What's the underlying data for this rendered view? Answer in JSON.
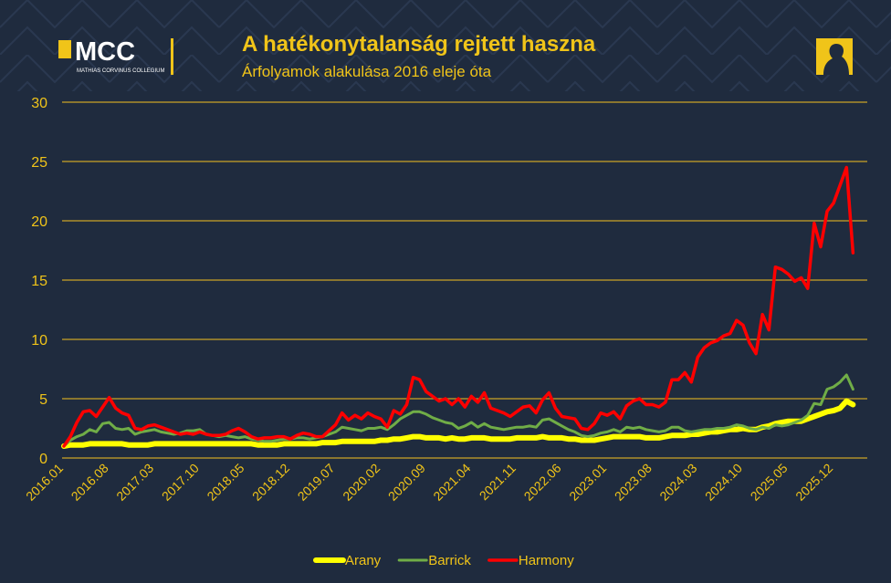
{
  "logo": {
    "text": "MCC",
    "subtitle": "MATHIAS CORVINUS COLLEGIUM"
  },
  "chart_data": {
    "type": "line",
    "title": "A hatékonytalanság rejtett haszna",
    "subtitle": "Árfolyamok alakulása 2016 eleje óta",
    "categories": [
      "2016.01",
      null,
      null,
      null,
      null,
      null,
      null,
      "2016.08",
      null,
      null,
      null,
      null,
      null,
      null,
      "2017.03",
      null,
      null,
      null,
      null,
      null,
      null,
      "2017.10",
      null,
      null,
      null,
      null,
      null,
      null,
      "2018.05",
      null,
      null,
      null,
      null,
      null,
      null,
      "2018.12",
      null,
      null,
      null,
      null,
      null,
      null,
      "2019.07",
      null,
      null,
      null,
      null,
      null,
      null,
      "2020.02",
      null,
      null,
      null,
      null,
      null,
      null,
      "2020.09",
      null,
      null,
      null,
      null,
      null,
      null,
      "2021.04",
      null,
      null,
      null,
      null,
      null,
      null,
      "2021.11",
      null,
      null,
      null,
      null,
      null,
      null,
      "2022.06",
      null,
      null,
      null,
      null,
      null,
      null,
      "2023.01",
      null,
      null,
      null,
      null,
      null,
      null,
      "2023.08",
      null,
      null,
      null,
      null,
      null,
      null,
      "2024.03",
      null,
      null,
      null,
      null,
      null,
      null,
      "2024.10",
      null,
      null,
      null,
      null,
      null,
      null,
      "2025.05",
      null,
      null,
      null,
      null,
      null,
      null,
      "2025.12",
      null,
      null,
      null
    ],
    "series": [
      {
        "name": "Arany",
        "color": "#ffff00",
        "line_width": 6,
        "values": [
          1.0,
          1.1,
          1.1,
          1.1,
          1.2,
          1.2,
          1.2,
          1.2,
          1.2,
          1.2,
          1.1,
          1.1,
          1.1,
          1.1,
          1.2,
          1.2,
          1.2,
          1.2,
          1.2,
          1.2,
          1.2,
          1.2,
          1.2,
          1.2,
          1.2,
          1.2,
          1.2,
          1.2,
          1.2,
          1.2,
          1.1,
          1.1,
          1.1,
          1.1,
          1.2,
          1.2,
          1.2,
          1.2,
          1.2,
          1.2,
          1.3,
          1.3,
          1.3,
          1.4,
          1.4,
          1.4,
          1.4,
          1.4,
          1.4,
          1.5,
          1.5,
          1.6,
          1.6,
          1.7,
          1.8,
          1.8,
          1.7,
          1.7,
          1.7,
          1.6,
          1.7,
          1.6,
          1.6,
          1.7,
          1.7,
          1.7,
          1.6,
          1.6,
          1.6,
          1.6,
          1.7,
          1.7,
          1.7,
          1.7,
          1.8,
          1.7,
          1.7,
          1.7,
          1.6,
          1.6,
          1.5,
          1.5,
          1.5,
          1.6,
          1.7,
          1.8,
          1.8,
          1.8,
          1.8,
          1.8,
          1.7,
          1.7,
          1.7,
          1.8,
          1.9,
          1.9,
          1.9,
          2.0,
          2.0,
          2.1,
          2.2,
          2.2,
          2.3,
          2.4,
          2.4,
          2.5,
          2.4,
          2.4,
          2.6,
          2.7,
          2.9,
          3.0,
          3.1,
          3.1,
          3.1,
          3.3,
          3.5,
          3.7,
          3.9,
          4.0,
          4.2,
          4.8,
          4.5
        ]
      },
      {
        "name": "Barrick",
        "color": "#70ad47",
        "line_width": 3,
        "values": [
          1.0,
          1.5,
          1.8,
          2.0,
          2.4,
          2.2,
          2.9,
          3.0,
          2.5,
          2.4,
          2.5,
          2.0,
          2.2,
          2.3,
          2.4,
          2.2,
          2.1,
          2.0,
          2.1,
          2.3,
          2.3,
          2.4,
          2.0,
          1.9,
          1.8,
          1.9,
          1.8,
          1.7,
          1.8,
          1.6,
          1.5,
          1.4,
          1.4,
          1.5,
          1.6,
          1.6,
          1.7,
          1.7,
          1.6,
          1.7,
          1.8,
          2.0,
          2.2,
          2.6,
          2.5,
          2.4,
          2.3,
          2.5,
          2.5,
          2.6,
          2.4,
          2.8,
          3.3,
          3.6,
          3.9,
          3.9,
          3.7,
          3.4,
          3.2,
          3.0,
          2.9,
          2.5,
          2.7,
          3.0,
          2.6,
          2.9,
          2.6,
          2.5,
          2.4,
          2.5,
          2.6,
          2.6,
          2.7,
          2.6,
          3.2,
          3.3,
          3.0,
          2.7,
          2.4,
          2.2,
          1.9,
          1.8,
          1.9,
          2.1,
          2.2,
          2.4,
          2.2,
          2.6,
          2.5,
          2.6,
          2.4,
          2.3,
          2.2,
          2.3,
          2.6,
          2.6,
          2.3,
          2.2,
          2.3,
          2.4,
          2.4,
          2.5,
          2.5,
          2.6,
          2.8,
          2.7,
          2.5,
          2.4,
          2.6,
          2.5,
          2.8,
          2.7,
          2.8,
          3.0,
          3.2,
          3.6,
          4.6,
          4.5,
          5.8,
          6.0,
          6.4,
          7.0,
          5.8
        ]
      },
      {
        "name": "Harmony",
        "color": "#ff0000",
        "line_width": 3.5,
        "values": [
          1.0,
          1.8,
          3.0,
          3.9,
          4.0,
          3.5,
          4.3,
          5.1,
          4.2,
          3.8,
          3.6,
          2.5,
          2.4,
          2.7,
          2.8,
          2.6,
          2.4,
          2.2,
          2.0,
          2.1,
          2.0,
          2.2,
          2.0,
          1.9,
          1.9,
          2.0,
          2.3,
          2.5,
          2.2,
          1.8,
          1.6,
          1.7,
          1.7,
          1.8,
          1.8,
          1.6,
          1.9,
          2.1,
          2.0,
          1.8,
          1.8,
          2.3,
          2.8,
          3.8,
          3.2,
          3.6,
          3.3,
          3.8,
          3.5,
          3.3,
          2.6,
          4.0,
          3.7,
          4.5,
          6.8,
          6.6,
          5.6,
          5.2,
          4.8,
          5.0,
          4.5,
          5.0,
          4.3,
          5.2,
          4.7,
          5.5,
          4.2,
          4.0,
          3.8,
          3.5,
          3.9,
          4.3,
          4.4,
          3.8,
          4.9,
          5.5,
          4.2,
          3.5,
          3.4,
          3.3,
          2.5,
          2.4,
          2.9,
          3.8,
          3.6,
          3.9,
          3.3,
          4.4,
          4.8,
          5.0,
          4.5,
          4.5,
          4.3,
          4.7,
          6.6,
          6.6,
          7.2,
          6.4,
          8.5,
          9.3,
          9.7,
          9.9,
          10.3,
          10.5,
          11.6,
          11.2,
          9.7,
          8.8,
          12.1,
          10.8,
          16.1,
          15.9,
          15.5,
          14.9,
          15.2,
          14.3,
          19.8,
          17.8,
          20.8,
          21.5,
          23.0,
          24.5,
          17.3
        ]
      }
    ],
    "ylim": [
      0,
      30
    ],
    "yticks": [
      0,
      5,
      10,
      15,
      20,
      25,
      30
    ],
    "grid": true,
    "legend": "bottom"
  }
}
